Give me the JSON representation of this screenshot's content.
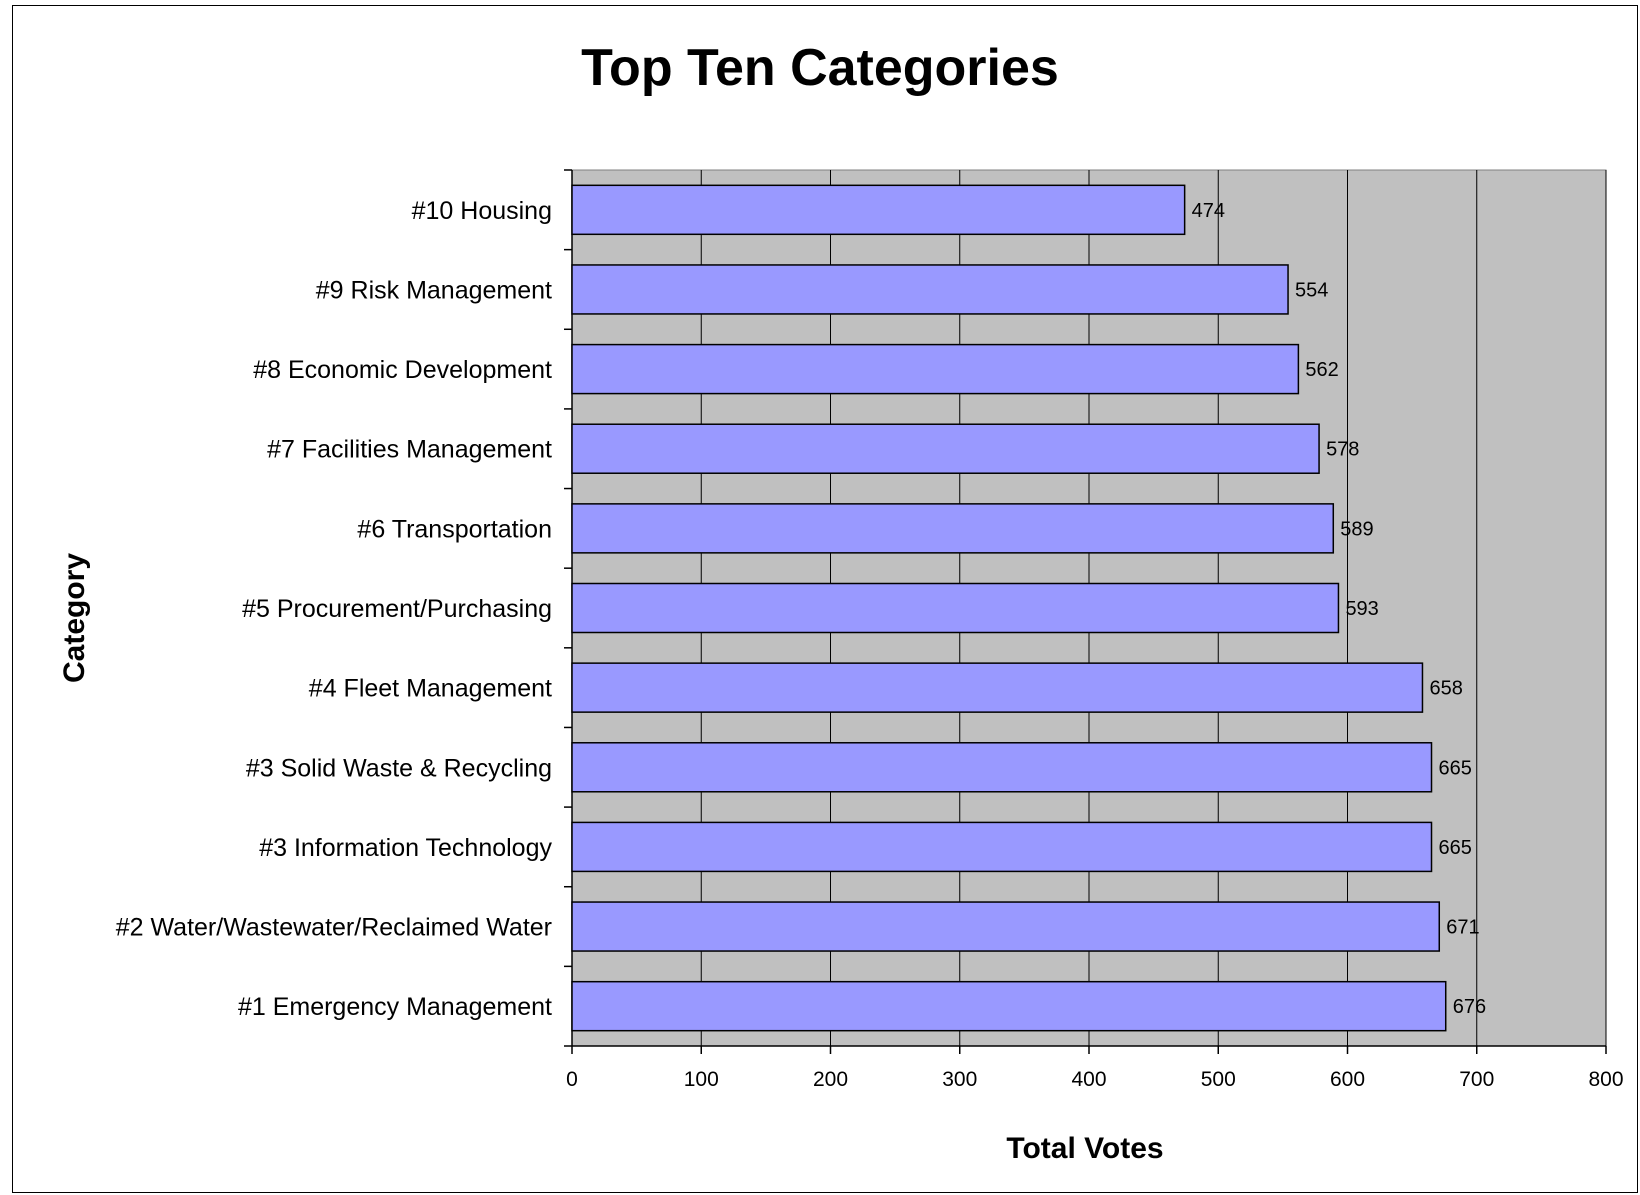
{
  "chart_data": {
    "type": "bar",
    "orientation": "horizontal",
    "title": "Top Ten Categories",
    "xlabel": "Total Votes",
    "ylabel": "Category",
    "xlim": [
      0,
      800
    ],
    "xticks": [
      0,
      100,
      200,
      300,
      400,
      500,
      600,
      700,
      800
    ],
    "grid": true,
    "legend": "none",
    "categories": [
      "#10 Housing",
      "#9 Risk Management",
      "#8 Economic Development",
      "#7 Facilities Management",
      "#6 Transportation",
      "#5 Procurement/Purchasing",
      "#4 Fleet Management",
      "#3 Solid Waste & Recycling",
      "#3 Information Technology",
      "#2 Water/Wastewater/Reclaimed Water",
      "#1 Emergency Management"
    ],
    "values": [
      474,
      554,
      562,
      578,
      589,
      593,
      658,
      665,
      665,
      671,
      676
    ],
    "data_labels": [
      "474",
      "554",
      "562",
      "578",
      "589",
      "593",
      "658",
      "665",
      "665",
      "671",
      "676"
    ],
    "colors": {
      "bar_fill": "#9999ff",
      "bar_stroke": "#000000",
      "plot_background": "#c0c0c0",
      "gridline": "#000000"
    }
  }
}
